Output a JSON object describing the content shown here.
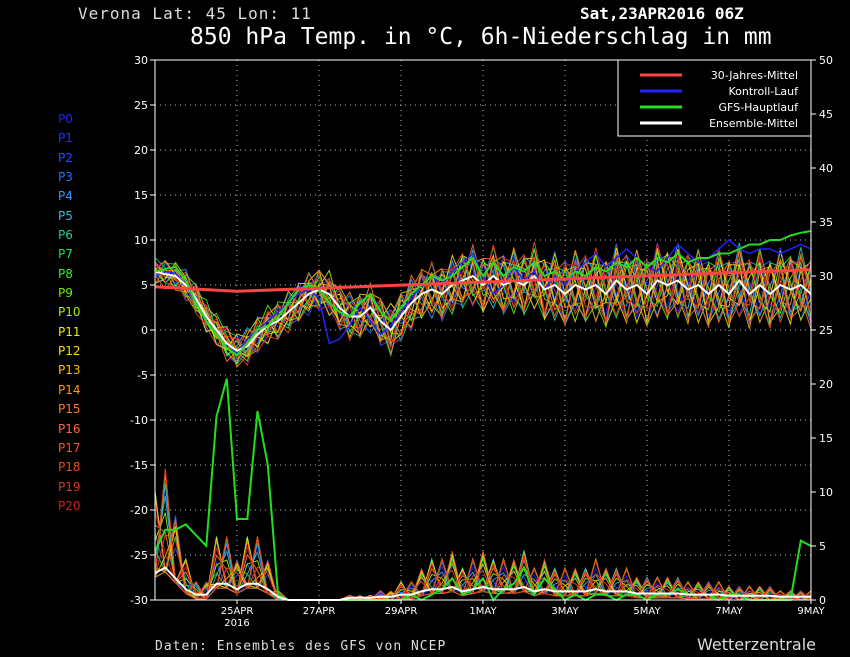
{
  "header": {
    "location": "Verona   Lat: 45 Lon: 11",
    "run": "Sat,23APR2016 06Z",
    "title": "850 hPa Temp. in °C, 6h-Niederschlag in mm"
  },
  "footer": {
    "source": "Daten: Ensembles des GFS von NCEP",
    "brand": "Wetterzentrale"
  },
  "members": [
    {
      "label": "P0",
      "color": "#2020ff"
    },
    {
      "label": "P1",
      "color": "#2030ff"
    },
    {
      "label": "P2",
      "color": "#2050ff"
    },
    {
      "label": "P3",
      "color": "#2a70ff"
    },
    {
      "label": "P4",
      "color": "#3399ff"
    },
    {
      "label": "P5",
      "color": "#33bbdd"
    },
    {
      "label": "P6",
      "color": "#22cc99"
    },
    {
      "label": "P7",
      "color": "#22dd55"
    },
    {
      "label": "P8",
      "color": "#33ee22"
    },
    {
      "label": "P9",
      "color": "#66ee00"
    },
    {
      "label": "P10",
      "color": "#aaee00"
    },
    {
      "label": "P11",
      "color": "#eeee00"
    },
    {
      "label": "P12",
      "color": "#ffdd00"
    },
    {
      "label": "P13",
      "color": "#ffbb00"
    },
    {
      "label": "P14",
      "color": "#ff9900"
    },
    {
      "label": "P15",
      "color": "#ff7722"
    },
    {
      "label": "P16",
      "color": "#ff6633"
    },
    {
      "label": "P17",
      "color": "#ee5533"
    },
    {
      "label": "P18",
      "color": "#ee4422"
    },
    {
      "label": "P19",
      "color": "#dd3322"
    },
    {
      "label": "P20",
      "color": "#cc2222"
    }
  ],
  "chart_data": {
    "type": "line",
    "title": "850 hPa Temp. in °C, 6h-Niederschlag in mm",
    "x_unit": "6-hourly steps from 23APR2016 06Z",
    "x_tick_labels": [
      {
        "label": "25APR",
        "sub": "2016",
        "step": 8
      },
      {
        "label": "27APR",
        "step": 16
      },
      {
        "label": "29APR",
        "step": 24
      },
      {
        "label": "1MAY",
        "step": 32
      },
      {
        "label": "3MAY",
        "step": 40
      },
      {
        "label": "5MAY",
        "step": 48
      },
      {
        "label": "7MAY",
        "step": 56
      },
      {
        "label": "9MAY",
        "step": 64
      }
    ],
    "xlim": [
      0,
      64
    ],
    "y_left": {
      "ylim": [
        -30,
        30
      ],
      "ticks": [
        -30,
        -25,
        -20,
        -15,
        -10,
        -5,
        0,
        5,
        10,
        15,
        20,
        25,
        30
      ]
    },
    "y_right": {
      "ylim": [
        0,
        50
      ],
      "ticks": [
        0,
        5,
        10,
        15,
        20,
        25,
        30,
        35,
        40,
        45,
        50
      ]
    },
    "grid": true,
    "legend_position": "top-right",
    "legend": [
      {
        "name": "30-Jahres-Mittel",
        "color": "#ff4444"
      },
      {
        "name": "Kontroll-Lauf",
        "color": "#2222ff"
      },
      {
        "name": "GFS-Hauptlauf",
        "color": "#22dd22"
      },
      {
        "name": "Ensemble-Mittel",
        "color": "#ffffff"
      }
    ],
    "temp_mean_30y": {
      "start": 4.8,
      "min": 4.3,
      "min_step": 8,
      "end": 6.7
    },
    "temp_ensemble_mean": [
      6.5,
      6.2,
      6.0,
      5.0,
      3.5,
      1.5,
      0.0,
      -1.5,
      -2.3,
      -1.8,
      -0.5,
      0.5,
      1.0,
      2.0,
      3.0,
      4.0,
      4.5,
      4.0,
      2.5,
      1.5,
      1.5,
      2.5,
      1.0,
      0.0,
      1.5,
      3.0,
      4.0,
      4.5,
      4.0,
      5.0,
      5.5,
      6.0,
      5.0,
      6.0,
      5.0,
      5.5,
      5.0,
      6.0,
      4.5,
      5.0,
      4.0,
      5.0,
      4.5,
      5.0,
      4.0,
      5.5,
      4.5,
      5.0,
      4.0,
      5.5,
      5.0,
      5.5,
      4.5,
      5.0,
      4.0,
      5.0,
      4.0,
      5.5,
      4.0,
      5.0,
      4.0,
      5.0,
      4.5,
      5.0,
      4.0
    ],
    "temp_gfs_main": [
      6.5,
      6.8,
      7.0,
      5.5,
      3.0,
      1.0,
      -0.5,
      -2.0,
      -2.8,
      -1.5,
      0.0,
      0.5,
      1.5,
      3.0,
      4.5,
      5.0,
      4.5,
      3.0,
      2.0,
      1.5,
      3.0,
      4.0,
      2.0,
      1.0,
      2.5,
      4.0,
      5.0,
      6.0,
      5.5,
      6.0,
      7.0,
      8.0,
      6.0,
      7.5,
      6.0,
      7.0,
      6.5,
      7.5,
      6.0,
      6.5,
      5.5,
      6.5,
      6.0,
      7.0,
      6.5,
      7.5,
      7.0,
      8.0,
      7.0,
      8.0,
      7.5,
      8.5,
      7.5,
      8.0,
      8.0,
      8.5,
      8.5,
      9.0,
      9.5,
      9.5,
      10.0,
      10.0,
      10.5,
      10.8,
      11.0
    ],
    "temp_control": [
      6.0,
      6.5,
      6.3,
      5.0,
      3.0,
      1.0,
      -0.5,
      -2.0,
      -2.5,
      -1.0,
      0.0,
      1.0,
      2.0,
      3.0,
      4.0,
      4.5,
      3.5,
      -1.5,
      -1.0,
      0.5,
      2.5,
      1.0,
      -0.5,
      0.5,
      2.0,
      3.5,
      5.0,
      6.0,
      5.0,
      6.5,
      7.5,
      8.5,
      6.0,
      4.0,
      5.0,
      7.0,
      5.5,
      6.5,
      4.5,
      6.0,
      5.0,
      6.5,
      7.5,
      8.5,
      7.0,
      8.0,
      9.0,
      8.0,
      7.0,
      6.5,
      8.0,
      9.5,
      8.5,
      7.5,
      8.0,
      9.0,
      10.0,
      9.0,
      8.5,
      9.0,
      9.0,
      8.5,
      9.0,
      9.5,
      9.0
    ],
    "precip_gfs_main": [
      4.5,
      6.5,
      6.5,
      7.0,
      6.0,
      5.0,
      17.0,
      20.5,
      7.5,
      7.5,
      17.5,
      12.5,
      0.5,
      0.0,
      0.0,
      0.0,
      0.0,
      0.0,
      0.0,
      0.0,
      0.0,
      0.0,
      0.0,
      0.0,
      0.0,
      0.5,
      0.0,
      0.5,
      1.0,
      2.0,
      0.5,
      1.0,
      2.0,
      0.0,
      1.0,
      1.5,
      3.0,
      0.5,
      2.0,
      1.0,
      0.0,
      0.5,
      0.0,
      0.5,
      0.5,
      0.0,
      0.5,
      0.5,
      0.0,
      0.5,
      0.5,
      1.0,
      0.5,
      0.5,
      0.5,
      0.0,
      0.5,
      0.5,
      0.0,
      0.0,
      0.0,
      0.0,
      0.0,
      5.5,
      5.0
    ],
    "precip_ensemble_mean": [
      2.5,
      3.0,
      2.0,
      1.0,
      0.5,
      0.5,
      1.5,
      1.5,
      1.0,
      1.5,
      1.5,
      1.0,
      0.3,
      0.0,
      0.0,
      0.0,
      0.0,
      0.0,
      0.0,
      0.2,
      0.2,
      0.2,
      0.3,
      0.3,
      0.5,
      0.5,
      0.8,
      1.0,
      1.0,
      1.2,
      0.8,
      1.0,
      1.2,
      1.0,
      1.0,
      1.0,
      1.2,
      0.8,
      1.0,
      0.8,
      0.8,
      0.8,
      0.8,
      1.0,
      0.8,
      0.8,
      0.8,
      0.6,
      0.6,
      0.6,
      0.6,
      0.6,
      0.5,
      0.5,
      0.5,
      0.5,
      0.4,
      0.4,
      0.4,
      0.4,
      0.4,
      0.3,
      0.3,
      0.3,
      0.3
    ]
  }
}
